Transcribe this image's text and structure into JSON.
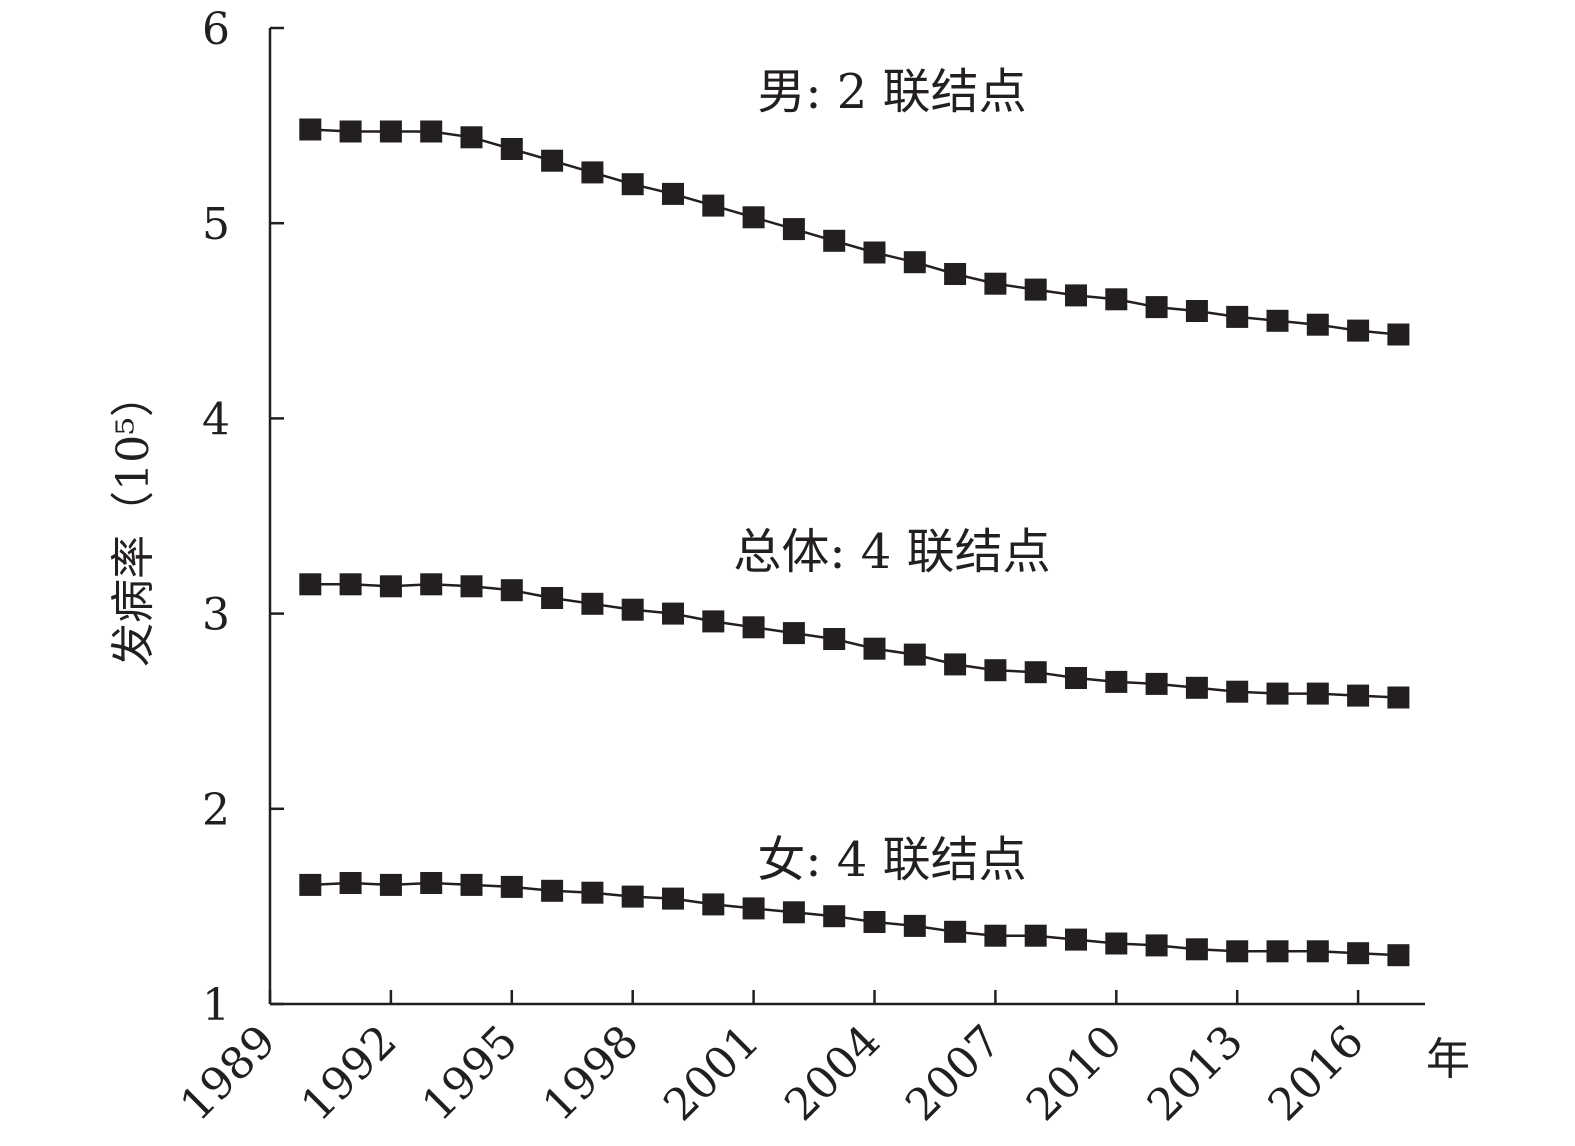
{
  "chart_data": {
    "type": "line",
    "title": "",
    "xlabel": "年",
    "ylabel": "发病率（10⁵）",
    "xlim": [
      1989,
      2018
    ],
    "ylim": [
      1,
      6
    ],
    "x_ticks": [
      1989,
      1992,
      1995,
      1998,
      2001,
      2004,
      2007,
      2010,
      2013,
      2016
    ],
    "y_ticks": [
      1,
      2,
      3,
      4,
      5,
      6
    ],
    "grid": false,
    "legend": "none",
    "colors": {
      "line": "#231f20",
      "marker": "#231f20"
    },
    "marker": "square",
    "x": [
      1990,
      1991,
      1992,
      1993,
      1994,
      1995,
      1996,
      1997,
      1998,
      1999,
      2000,
      2001,
      2002,
      2003,
      2004,
      2005,
      2006,
      2007,
      2008,
      2009,
      2010,
      2011,
      2012,
      2013,
      2014,
      2015,
      2016,
      2017
    ],
    "series": [
      {
        "label": "男: 2 联结点",
        "values": [
          5.48,
          5.47,
          5.47,
          5.47,
          5.44,
          5.38,
          5.32,
          5.26,
          5.2,
          5.15,
          5.09,
          5.03,
          4.97,
          4.91,
          4.85,
          4.8,
          4.74,
          4.69,
          4.66,
          4.63,
          4.61,
          4.57,
          4.55,
          4.52,
          4.5,
          4.48,
          4.45,
          4.43
        ]
      },
      {
        "label": "总体: 4 联结点",
        "values": [
          3.15,
          3.15,
          3.14,
          3.15,
          3.14,
          3.12,
          3.08,
          3.05,
          3.02,
          3.0,
          2.96,
          2.93,
          2.9,
          2.87,
          2.82,
          2.79,
          2.74,
          2.71,
          2.7,
          2.67,
          2.65,
          2.64,
          2.62,
          2.6,
          2.59,
          2.59,
          2.58,
          2.57
        ]
      },
      {
        "label": "女: 4 联结点",
        "values": [
          1.61,
          1.62,
          1.61,
          1.62,
          1.61,
          1.6,
          1.58,
          1.57,
          1.55,
          1.54,
          1.51,
          1.49,
          1.47,
          1.45,
          1.42,
          1.4,
          1.37,
          1.35,
          1.35,
          1.33,
          1.31,
          1.3,
          1.28,
          1.27,
          1.27,
          1.27,
          1.26,
          1.25
        ]
      }
    ]
  }
}
